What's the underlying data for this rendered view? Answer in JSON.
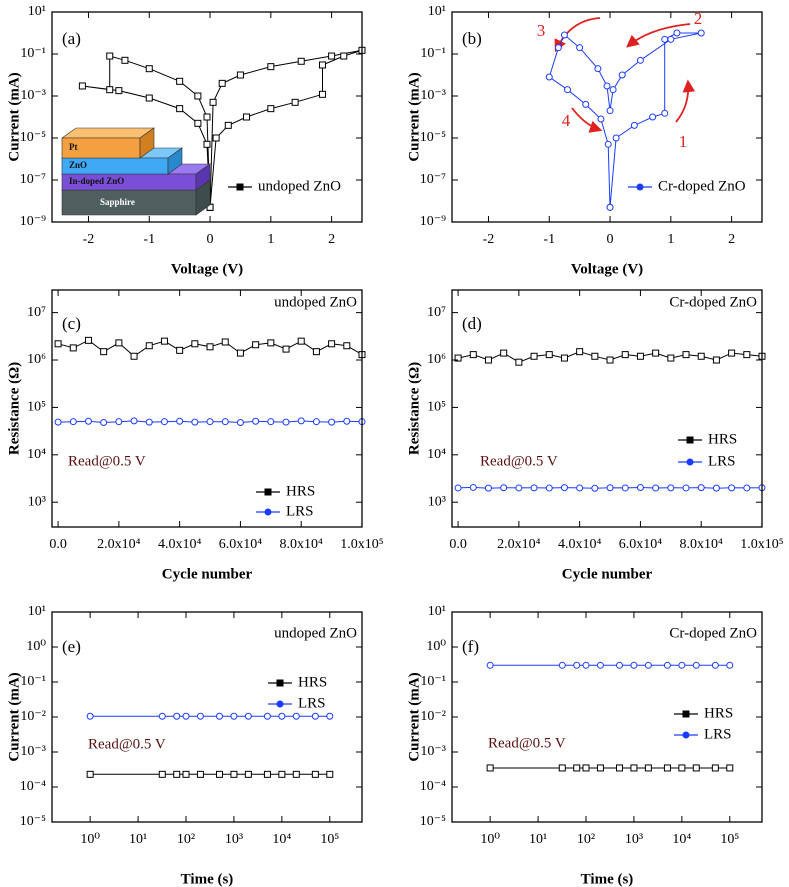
{
  "chart_data": [
    {
      "type": "line",
      "label": "(a)",
      "xlabel": "Voltage (V)",
      "ylabel": "Current (mA)",
      "yscale": "log",
      "xlim": [
        -2.6,
        2.5
      ],
      "xticks": [
        -2,
        -1,
        0,
        1,
        2
      ],
      "ylim": [
        1e-09,
        10
      ],
      "yticks": [
        {
          "value": 1e-09,
          "label": "10⁻⁹"
        },
        {
          "value": 1e-07,
          "label": "10⁻⁷"
        },
        {
          "value": 1e-05,
          "label": "10⁻⁵"
        },
        {
          "value": 0.001,
          "label": "10⁻³"
        },
        {
          "value": 0.1,
          "label": "10⁻¹"
        },
        {
          "value": 10,
          "label": "10¹"
        }
      ],
      "legend": "lower right",
      "inset": [
        "Pt",
        "ZnO",
        "In-doped ZnO",
        "Sapphire"
      ],
      "x": [
        0,
        0.1,
        0.3,
        0.6,
        1.0,
        1.4,
        1.85,
        1.85,
        2.2,
        2.5,
        2.0,
        1.5,
        1.0,
        0.5,
        0.2,
        0.05,
        0,
        -0.05,
        -0.2,
        -0.5,
        -1.0,
        -1.4,
        -1.65,
        -1.65,
        -2.1,
        -1.5,
        -1.0,
        -0.5,
        -0.2,
        -0.05,
        0
      ],
      "series": [
        {
          "name": "undoped ZnO",
          "color": "#000000",
          "marker": "square",
          "values": [
            5e-09,
            1e-05,
            4e-05,
            0.0001,
            0.00025,
            0.0005,
            0.0012,
            0.03,
            0.08,
            0.15,
            0.08,
            0.045,
            0.025,
            0.01,
            0.004,
            0.0005,
            5e-09,
            0.0001,
            0.001,
            0.005,
            0.02,
            0.05,
            0.08,
            0.002,
            0.003,
            0.0018,
            0.0008,
            0.00025,
            5e-05,
            5e-06,
            5e-09
          ]
        }
      ]
    },
    {
      "type": "line",
      "label": "(b)",
      "xlabel": "Voltage (V)",
      "ylabel": "Current (mA)",
      "yscale": "log",
      "xlim": [
        -2.6,
        2.5
      ],
      "xticks": [
        -2,
        -1,
        0,
        1,
        2
      ],
      "ylim": [
        1e-09,
        10
      ],
      "yticks": [
        {
          "value": 1e-09,
          "label": "10⁻⁹"
        },
        {
          "value": 1e-07,
          "label": "10⁻⁷"
        },
        {
          "value": 1e-05,
          "label": "10⁻⁵"
        },
        {
          "value": 0.001,
          "label": "10⁻³"
        },
        {
          "value": 0.1,
          "label": "10⁻¹"
        },
        {
          "value": 10,
          "label": "10¹"
        }
      ],
      "legend": "lower right",
      "annotations": [
        "1",
        "2",
        "3",
        "4"
      ],
      "x": [
        0,
        0.1,
        0.4,
        0.7,
        0.9,
        0.9,
        1.1,
        1.5,
        1.0,
        0.5,
        0.2,
        0.05,
        0,
        -0.05,
        -0.2,
        -0.5,
        -0.75,
        -0.85,
        -1.0,
        -0.7,
        -0.4,
        -0.15,
        -0.03,
        0
      ],
      "series": [
        {
          "name": "Cr-doped ZnO",
          "color": "#1a3cff",
          "marker": "circle",
          "values": [
            5e-09,
            1e-05,
            4e-05,
            0.0001,
            0.00015,
            0.5,
            1,
            1,
            0.5,
            0.05,
            0.01,
            0.002,
            0.0002,
            0.003,
            0.02,
            0.2,
            0.8,
            0.2,
            0.008,
            0.002,
            0.0004,
            8e-05,
            5e-06,
            5e-09
          ]
        }
      ]
    },
    {
      "type": "line",
      "label": "(c)",
      "xlabel": "Cycle number",
      "ylabel": "Resistance (Ω)",
      "yscale": "log",
      "xlim": [
        -2000,
        100000
      ],
      "xticks": [
        {
          "value": 0,
          "label": "0.0"
        },
        {
          "value": 20000,
          "label": "2.0x10⁴"
        },
        {
          "value": 40000,
          "label": "4.0x10⁴"
        },
        {
          "value": 60000,
          "label": "6.0x10⁴"
        },
        {
          "value": 80000,
          "label": "8.0x10⁴"
        },
        {
          "value": 100000,
          "label": "1.0x10⁵"
        }
      ],
      "ylim": [
        300,
        30000000
      ],
      "yticks": [
        {
          "value": 1000,
          "label": "10³"
        },
        {
          "value": 10000,
          "label": "10⁴"
        },
        {
          "value": 100000,
          "label": "10⁵"
        },
        {
          "value": 1000000,
          "label": "10⁶"
        },
        {
          "value": 10000000,
          "label": "10⁷"
        }
      ],
      "legend": "lower right",
      "annotations": [
        "undoped ZnO",
        "Read@0.5 V"
      ],
      "x": [
        0,
        5000,
        10000,
        15000,
        20000,
        25000,
        30000,
        35000,
        40000,
        45000,
        50000,
        55000,
        60000,
        65000,
        70000,
        75000,
        80000,
        85000,
        90000,
        95000,
        100000
      ],
      "series": [
        {
          "name": "HRS",
          "color": "#000000",
          "marker": "square",
          "values": [
            2200000,
            1800000,
            2600000,
            1500000,
            2300000,
            1200000,
            2000000,
            2500000,
            1600000,
            2200000,
            1900000,
            2400000,
            1400000,
            2100000,
            2300000,
            1700000,
            2500000,
            1500000,
            2200000,
            2000000,
            1300000
          ]
        },
        {
          "name": "LRS",
          "color": "#1a3cff",
          "marker": "circle",
          "values": [
            49000,
            50000,
            51000,
            48000,
            50000,
            52000,
            49000,
            50000,
            51000,
            49000,
            50000,
            50000,
            48000,
            51000,
            50000,
            49000,
            52000,
            50000,
            49000,
            51000,
            50000
          ]
        }
      ]
    },
    {
      "type": "line",
      "label": "(d)",
      "xlabel": "Cycle number",
      "ylabel": "Resistance (Ω)",
      "yscale": "log",
      "xlim": [
        -2000,
        100000
      ],
      "xticks": [
        {
          "value": 0,
          "label": "0.0"
        },
        {
          "value": 20000,
          "label": "2.0x10⁴"
        },
        {
          "value": 40000,
          "label": "4.0x10⁴"
        },
        {
          "value": 60000,
          "label": "6.0x10⁴"
        },
        {
          "value": 80000,
          "label": "8.0x10⁴"
        },
        {
          "value": 100000,
          "label": "1.0x10⁵"
        }
      ],
      "ylim": [
        300,
        30000000
      ],
      "yticks": [
        {
          "value": 1000,
          "label": "10³"
        },
        {
          "value": 10000,
          "label": "10⁴"
        },
        {
          "value": 100000,
          "label": "10⁵"
        },
        {
          "value": 1000000,
          "label": "10⁶"
        },
        {
          "value": 10000000,
          "label": "10⁷"
        }
      ],
      "legend": "center right",
      "annotations": [
        "Cr-doped ZnO",
        "Read@0.5 V"
      ],
      "x": [
        0,
        5000,
        10000,
        15000,
        20000,
        25000,
        30000,
        35000,
        40000,
        45000,
        50000,
        55000,
        60000,
        65000,
        70000,
        75000,
        80000,
        85000,
        90000,
        95000,
        100000
      ],
      "series": [
        {
          "name": "HRS",
          "color": "#000000",
          "marker": "square",
          "values": [
            1100000,
            1300000,
            1000000,
            1400000,
            900000,
            1200000,
            1300000,
            1100000,
            1500000,
            1200000,
            1000000,
            1300000,
            1200000,
            1400000,
            1100000,
            1300000,
            1200000,
            1000000,
            1400000,
            1300000,
            1200000
          ]
        },
        {
          "name": "LRS",
          "color": "#1a3cff",
          "marker": "circle",
          "values": [
            2000,
            2050,
            1980,
            2020,
            2000,
            2010,
            1990,
            2030,
            2000,
            1970,
            2020,
            2000,
            2040,
            1990,
            2010,
            2000,
            2030,
            1980,
            2010,
            2000,
            2020
          ]
        }
      ]
    },
    {
      "type": "line",
      "label": "(e)",
      "xlabel": "Time (s)",
      "ylabel": "Current (mA)",
      "yscale": "log",
      "xscale": "log",
      "xlim": [
        0.16,
        470000
      ],
      "xticks": [
        {
          "value": 1,
          "label": "10⁰"
        },
        {
          "value": 10,
          "label": "10¹"
        },
        {
          "value": 100,
          "label": "10²"
        },
        {
          "value": 1000,
          "label": "10³"
        },
        {
          "value": 10000,
          "label": "10⁴"
        },
        {
          "value": 100000,
          "label": "10⁵"
        }
      ],
      "ylim": [
        1e-05,
        10
      ],
      "yticks": [
        {
          "value": 1e-05,
          "label": "10⁻⁵"
        },
        {
          "value": 0.0001,
          "label": "10⁻⁴"
        },
        {
          "value": 0.001,
          "label": "10⁻³"
        },
        {
          "value": 0.01,
          "label": "10⁻²"
        },
        {
          "value": 0.1,
          "label": "10⁻¹"
        },
        {
          "value": 1,
          "label": "10⁰"
        },
        {
          "value": 10,
          "label": "10¹"
        }
      ],
      "legend": "upper right",
      "annotations": [
        "undoped ZnO",
        "Read@0.5 V"
      ],
      "x": [
        1,
        32,
        64,
        100,
        200,
        500,
        1000,
        2000,
        5000,
        10000,
        20000,
        50000,
        100000
      ],
      "series": [
        {
          "name": "HRS",
          "color": "#000000",
          "marker": "square",
          "values": [
            0.00023,
            0.00023,
            0.00023,
            0.00023,
            0.00023,
            0.00023,
            0.00023,
            0.00023,
            0.00023,
            0.00023,
            0.00023,
            0.00023,
            0.00023
          ]
        },
        {
          "name": "LRS",
          "color": "#1a3cff",
          "marker": "circle",
          "values": [
            0.0105,
            0.0105,
            0.0105,
            0.0105,
            0.0105,
            0.0105,
            0.0105,
            0.0105,
            0.0105,
            0.0105,
            0.0105,
            0.0105,
            0.0105
          ]
        }
      ]
    },
    {
      "type": "line",
      "label": "(f)",
      "xlabel": "Time (s)",
      "ylabel": "Current (mA)",
      "yscale": "log",
      "xscale": "log",
      "xlim": [
        0.16,
        470000
      ],
      "xticks": [
        {
          "value": 1,
          "label": "10⁰"
        },
        {
          "value": 10,
          "label": "10¹"
        },
        {
          "value": 100,
          "label": "10²"
        },
        {
          "value": 1000,
          "label": "10³"
        },
        {
          "value": 10000,
          "label": "10⁴"
        },
        {
          "value": 100000,
          "label": "10⁵"
        }
      ],
      "ylim": [
        1e-05,
        10
      ],
      "yticks": [
        {
          "value": 1e-05,
          "label": "10⁻⁵"
        },
        {
          "value": 0.0001,
          "label": "10⁻⁴"
        },
        {
          "value": 0.001,
          "label": "10⁻³"
        },
        {
          "value": 0.01,
          "label": "10⁻²"
        },
        {
          "value": 0.1,
          "label": "10⁻¹"
        },
        {
          "value": 1,
          "label": "10⁰"
        },
        {
          "value": 10,
          "label": "10¹"
        }
      ],
      "legend": "center right",
      "annotations": [
        "Cr-doped ZnO",
        "Read@0.5 V"
      ],
      "x": [
        1,
        32,
        64,
        100,
        200,
        500,
        1000,
        2000,
        5000,
        10000,
        20000,
        50000,
        100000
      ],
      "series": [
        {
          "name": "HRS",
          "color": "#000000",
          "marker": "square",
          "values": [
            0.00035,
            0.00035,
            0.00035,
            0.00035,
            0.00035,
            0.00035,
            0.00035,
            0.00035,
            0.00035,
            0.00035,
            0.00035,
            0.00035,
            0.00035
          ]
        },
        {
          "name": "LRS",
          "color": "#1a3cff",
          "marker": "circle",
          "values": [
            0.3,
            0.3,
            0.3,
            0.3,
            0.3,
            0.3,
            0.3,
            0.3,
            0.3,
            0.3,
            0.3,
            0.3,
            0.3
          ]
        }
      ]
    }
  ]
}
